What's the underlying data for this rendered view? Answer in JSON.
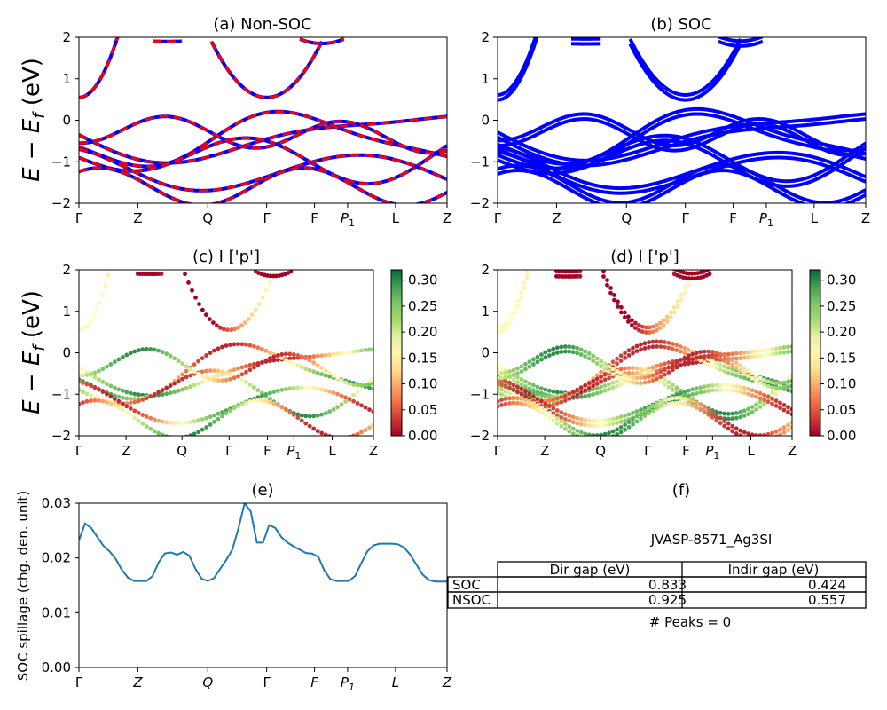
{
  "figure": {
    "ylabel_band": "E − E",
    "ylabel_band_sub": "f",
    "ylabel_band_unit": " (eV)"
  },
  "panels": {
    "a": {
      "title": "(a) Non-SOC"
    },
    "b": {
      "title": "(b) SOC"
    },
    "c": {
      "title": "(c)  I ['p']"
    },
    "d": {
      "title": "(d) I ['p']"
    },
    "e": {
      "title": "(e)",
      "ylabel": "SOC spillage (chg. den. unit)"
    },
    "f": {
      "title": "(f)"
    }
  },
  "kpath_labels": [
    "Γ",
    "Z",
    "Q",
    "Γ",
    "F",
    "P",
    "L",
    "Z"
  ],
  "kpath_p_sub": "1",
  "band_yticks": [
    "2",
    "1",
    "0",
    "−1",
    "−2"
  ],
  "colorbar_ticks": [
    "0.30",
    "0.25",
    "0.20",
    "0.15",
    "0.10",
    "0.05",
    "0.00"
  ],
  "spillage_yticks": [
    "0.03",
    "0.02",
    "0.01",
    "0.00"
  ],
  "info": {
    "material": "JVASP-8571_Ag3SI",
    "table_headers": [
      "Dir gap (eV)",
      "Indir gap (eV)"
    ],
    "rows": [
      {
        "label": "SOC",
        "dir": "0.833",
        "indir": "0.424"
      },
      {
        "label": "NSOC",
        "dir": "0.925",
        "indir": "0.557"
      }
    ],
    "peaks": "# Peaks = 0"
  },
  "colors": {
    "soc_band": "#0000ff",
    "nsoc_band": "#ff0000",
    "spillage": "#1f77b4"
  },
  "chart_data": [
    {
      "type": "line",
      "title": "(a) Non-SOC",
      "ylabel": "E − E_f (eV)",
      "ylim": [
        -2,
        2
      ],
      "xticks": [
        "Γ",
        "Z",
        "Q",
        "Γ",
        "F",
        "P_1",
        "L",
        "Z"
      ],
      "yticks": [
        -2,
        -1,
        0,
        1,
        2
      ]
    },
    {
      "type": "line",
      "title": "(b) SOC",
      "ylim": [
        -2,
        2
      ],
      "xticks": [
        "Γ",
        "Z",
        "Q",
        "Γ",
        "F",
        "P_1",
        "L",
        "Z"
      ],
      "yticks": [
        -2,
        -1,
        0,
        1,
        2
      ]
    },
    {
      "type": "scatter",
      "title": "(c)  I ['p']",
      "ylabel": "E − E_f (eV)",
      "ylim": [
        -2,
        2
      ],
      "colorbar_range": [
        0.0,
        0.32
      ],
      "colormap": "RdYlGn"
    },
    {
      "type": "scatter",
      "title": "(d) I ['p']",
      "ylim": [
        -2,
        2
      ],
      "colorbar_range": [
        0.0,
        0.32
      ],
      "colormap": "RdYlGn"
    },
    {
      "type": "line",
      "title": "(e)",
      "ylabel": "SOC spillage (chg. den. unit)",
      "ylim": [
        0.0,
        0.03
      ],
      "x": [
        0.0,
        0.0167,
        0.0333,
        0.05,
        0.0667,
        0.0833,
        0.1,
        0.1167,
        0.1333,
        0.15,
        0.1667,
        0.1833,
        0.2,
        0.2167,
        0.2333,
        0.25,
        0.2667,
        0.2833,
        0.3,
        0.3167,
        0.3333,
        0.35,
        0.3667,
        0.3833,
        0.4,
        0.4167,
        0.4333,
        0.45,
        0.4667,
        0.4833,
        0.5,
        0.5167,
        0.5333,
        0.55,
        0.5667,
        0.5833,
        0.6,
        0.6167,
        0.6333,
        0.65,
        0.6667,
        0.6833,
        0.7,
        0.7167,
        0.7333,
        0.75,
        0.7667,
        0.7833,
        0.8,
        0.8167,
        0.8333,
        0.85,
        0.8667,
        0.8833,
        0.9,
        0.9167,
        0.9333,
        0.95,
        0.9667,
        0.9833,
        1.0
      ],
      "y": [
        0.0232,
        0.0263,
        0.0255,
        0.0238,
        0.0222,
        0.0212,
        0.0198,
        0.0178,
        0.0164,
        0.0158,
        0.0158,
        0.0158,
        0.0167,
        0.0192,
        0.0208,
        0.021,
        0.0206,
        0.0211,
        0.0204,
        0.018,
        0.0162,
        0.0158,
        0.0163,
        0.018,
        0.0196,
        0.0215,
        0.0254,
        0.03,
        0.0285,
        0.0228,
        0.0228,
        0.026,
        0.0255,
        0.0238,
        0.0228,
        0.0221,
        0.0215,
        0.0209,
        0.0208,
        0.0202,
        0.0177,
        0.0161,
        0.0158,
        0.0158,
        0.0158,
        0.0167,
        0.019,
        0.0212,
        0.0223,
        0.0226,
        0.0226,
        0.0226,
        0.0225,
        0.0219,
        0.0206,
        0.0188,
        0.017,
        0.016,
        0.0157,
        0.0157,
        0.0157
      ],
      "xticks": [
        "Γ",
        "Z",
        "Q",
        "Γ",
        "F",
        "P_1",
        "L",
        "Z"
      ]
    },
    {
      "type": "table",
      "title": "(f)",
      "columns": [
        "",
        "Dir gap (eV)",
        "Indir gap (eV)"
      ],
      "rows": [
        [
          "SOC",
          "0.833",
          "0.424"
        ],
        [
          "NSOC",
          "0.925",
          "0.557"
        ]
      ]
    }
  ]
}
